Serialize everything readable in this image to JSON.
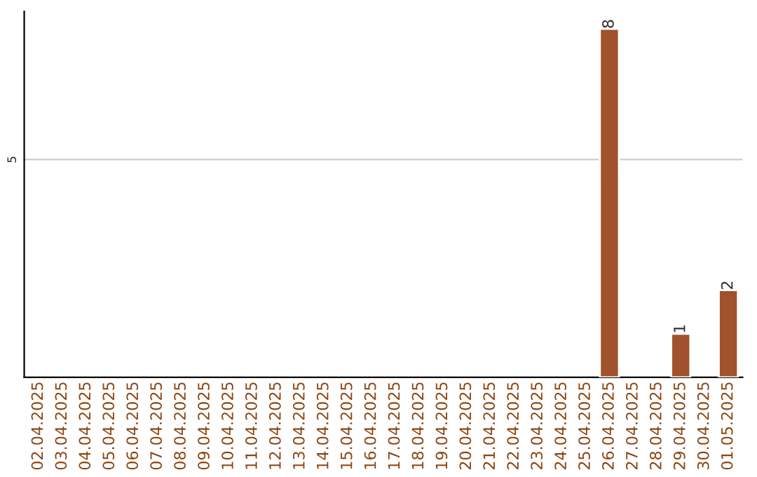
{
  "chart_data": {
    "type": "bar",
    "categories": [
      "02.04.2025",
      "03.04.2025",
      "04.04.2025",
      "05.04.2025",
      "06.04.2025",
      "07.04.2025",
      "08.04.2025",
      "09.04.2025",
      "10.04.2025",
      "11.04.2025",
      "12.04.2025",
      "13.04.2025",
      "14.04.2025",
      "15.04.2025",
      "16.04.2025",
      "17.04.2025",
      "18.04.2025",
      "19.04.2025",
      "20.04.2025",
      "21.04.2025",
      "22.04.2025",
      "23.04.2025",
      "24.04.2025",
      "25.04.2025",
      "26.04.2025",
      "27.04.2025",
      "28.04.2025",
      "29.04.2025",
      "30.04.2025",
      "01.05.2025"
    ],
    "values": [
      null,
      null,
      null,
      null,
      null,
      null,
      null,
      null,
      null,
      null,
      null,
      null,
      null,
      null,
      null,
      null,
      null,
      null,
      null,
      null,
      null,
      null,
      null,
      null,
      8,
      null,
      null,
      1,
      null,
      2
    ],
    "value_labels": [
      null,
      null,
      null,
      null,
      null,
      null,
      null,
      null,
      null,
      null,
      null,
      null,
      null,
      null,
      null,
      null,
      null,
      null,
      null,
      null,
      null,
      null,
      null,
      null,
      "8",
      null,
      null,
      "1",
      null,
      "2"
    ],
    "color": "#a0522d",
    "ylim": [
      0,
      8.4
    ],
    "ref_lines": [
      {
        "axis": "y",
        "value": 5,
        "label": "5",
        "color": "#cccccc"
      }
    ]
  }
}
